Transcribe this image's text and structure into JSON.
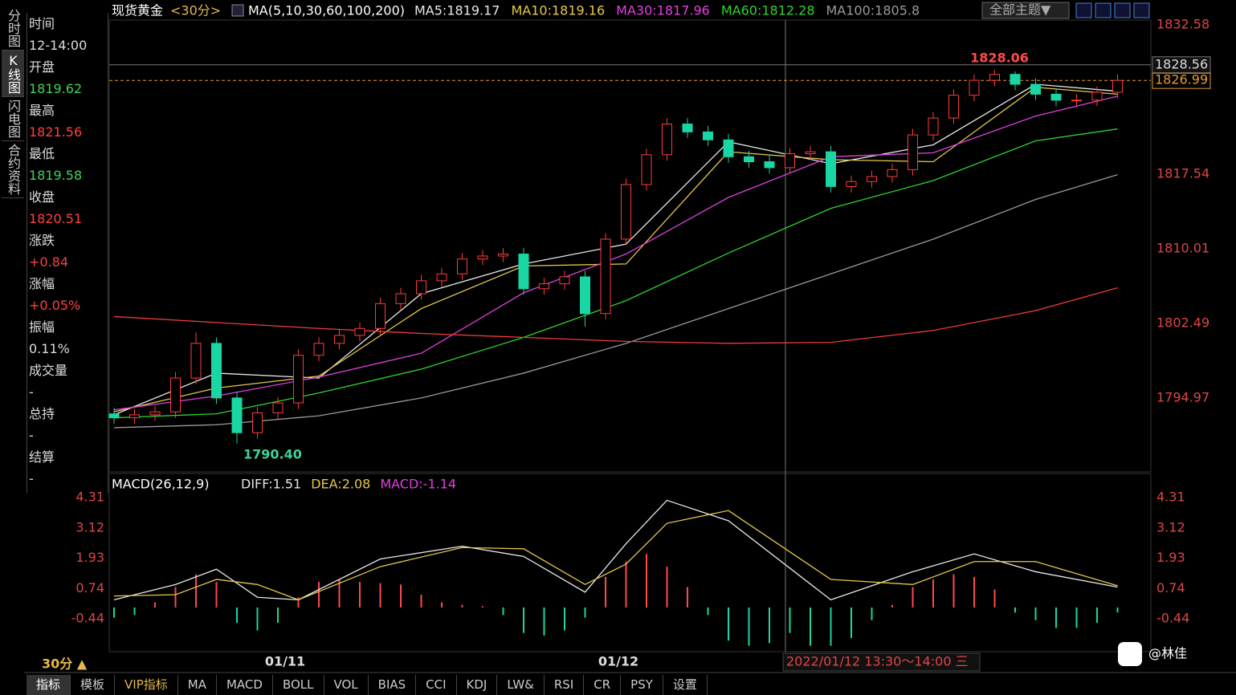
{
  "tabs_left": [
    "分时图",
    "K线图",
    "闪电图",
    "合约资料"
  ],
  "header": {
    "symbol": "现货黄金",
    "period": "<30分>",
    "ma_label": "MA(5,10,30,60,100,200)",
    "theme": "全部主题▼"
  },
  "info": [
    {
      "label": "时间",
      "value": "12-14:00"
    },
    {
      "label": "开盘",
      "value": "1819.62",
      "color": "#3fd35a"
    },
    {
      "label": "最高",
      "value": "1821.56",
      "color": "#ff4040"
    },
    {
      "label": "最低",
      "value": "1819.58",
      "color": "#3fd35a"
    },
    {
      "label": "收盘",
      "value": "1820.51",
      "color": "#ff4040"
    },
    {
      "label": "涨跌",
      "value": "+0.84",
      "color": "#ff4040"
    },
    {
      "label": "涨幅",
      "value": "+0.05%",
      "color": "#ff4040"
    },
    {
      "label": "振幅",
      "value": "0.11%"
    },
    {
      "label": "成交量",
      "value": "-"
    },
    {
      "label": "总持",
      "value": "-"
    },
    {
      "label": "结算",
      "value": "-"
    }
  ],
  "chart_data": {
    "type": "candlestick",
    "open": [
      1793.4,
      1793.0,
      1793.3,
      1793.6,
      1797.0,
      1800.5,
      1795.0,
      1791.5,
      1793.5,
      1794.5,
      1799.3,
      1800.5,
      1801.3,
      1802.0,
      1804.5,
      1805.5,
      1806.8,
      1807.5,
      1809.0,
      1809.3,
      1809.5,
      1806.0,
      1806.5,
      1807.2,
      1803.5,
      1811.0,
      1816.5,
      1819.5,
      1822.6,
      1821.8,
      1821.0,
      1819.3,
      1818.8,
      1818.2,
      1819.6,
      1819.8,
      1816.3,
      1816.8,
      1817.3,
      1818.0,
      1821.5,
      1823.2,
      1825.5,
      1827.0,
      1827.6,
      1826.6,
      1825.6,
      1825.0,
      1825.0,
      1825.8
    ],
    "high": [
      1794.0,
      1793.9,
      1794.2,
      1797.6,
      1801.6,
      1801.1,
      1795.6,
      1794.1,
      1795.1,
      1799.9,
      1801.1,
      1801.9,
      1802.6,
      1805.1,
      1806.1,
      1807.4,
      1808.1,
      1809.6,
      1809.9,
      1810.1,
      1810.1,
      1807.1,
      1807.8,
      1807.8,
      1811.6,
      1817.1,
      1820.1,
      1823.2,
      1823.2,
      1822.4,
      1821.6,
      1819.9,
      1819.4,
      1820.2,
      1820.4,
      1820.4,
      1817.4,
      1817.9,
      1818.6,
      1822.1,
      1823.8,
      1826.1,
      1827.6,
      1828.06,
      1827.9,
      1827.2,
      1826.2,
      1825.6,
      1826.4,
      1827.59
    ],
    "low": [
      1792.4,
      1792.4,
      1792.7,
      1793.0,
      1796.4,
      1794.4,
      1790.4,
      1790.9,
      1792.9,
      1793.9,
      1798.7,
      1799.9,
      1800.7,
      1801.4,
      1803.9,
      1804.9,
      1806.2,
      1806.9,
      1808.4,
      1808.7,
      1805.4,
      1805.4,
      1805.9,
      1802.2,
      1802.9,
      1810.4,
      1815.9,
      1818.9,
      1821.2,
      1820.4,
      1818.7,
      1818.2,
      1817.6,
      1817.6,
      1819.0,
      1815.7,
      1815.7,
      1816.2,
      1816.7,
      1817.4,
      1820.9,
      1822.6,
      1824.9,
      1826.4,
      1826.0,
      1825.0,
      1824.4,
      1824.4,
      1824.4,
      1825.2
    ],
    "close": [
      1793.0,
      1793.3,
      1793.6,
      1797.0,
      1800.5,
      1795.0,
      1791.5,
      1793.5,
      1794.5,
      1799.3,
      1800.5,
      1801.3,
      1802.0,
      1804.5,
      1805.5,
      1806.8,
      1807.5,
      1809.0,
      1809.3,
      1809.5,
      1806.0,
      1806.5,
      1807.2,
      1803.5,
      1811.0,
      1816.5,
      1819.5,
      1822.6,
      1821.8,
      1821.0,
      1819.3,
      1818.8,
      1818.2,
      1819.6,
      1819.8,
      1816.3,
      1816.8,
      1817.3,
      1818.0,
      1821.5,
      1823.2,
      1825.5,
      1827.0,
      1827.6,
      1826.6,
      1825.6,
      1825.0,
      1825.0,
      1825.8,
      1826.99
    ],
    "up_color": "#ff3c3c",
    "down_color": "#19d6a4",
    "ylim": [
      1787.55,
      1833.07
    ],
    "yticks": [
      1832.58,
      1817.54,
      1810.01,
      1802.49,
      1794.97
    ],
    "last_price": 1826.99,
    "cursor_price": 1828.56,
    "annotations": [
      "1828.06",
      "1790.40"
    ],
    "ma_x": [
      0,
      5,
      10,
      15,
      20,
      25,
      30,
      35,
      40,
      45,
      49
    ],
    "series": [
      {
        "name": "MA5:1819.17",
        "color": "#e8e8e8",
        "values": [
          1793.3,
          1797.5,
          1797.0,
          1805.5,
          1808.5,
          1810.5,
          1820.8,
          1818.6,
          1820.5,
          1826.6,
          1825.9
        ]
      },
      {
        "name": "MA10:1819.16",
        "color": "#e6c84a",
        "values": [
          1793.6,
          1796.0,
          1797.2,
          1804.0,
          1808.3,
          1808.5,
          1819.8,
          1819.0,
          1818.8,
          1826.3,
          1825.6
        ]
      },
      {
        "name": "MA30:1817.96",
        "color": "#e040e0",
        "values": [
          1793.8,
          1795.2,
          1797.1,
          1799.5,
          1805.6,
          1809.5,
          1815.2,
          1819.3,
          1819.7,
          1823.4,
          1825.4
        ]
      },
      {
        "name": "MA60:1812.28",
        "color": "#2ed52e",
        "values": [
          1793.0,
          1793.4,
          1795.5,
          1797.9,
          1801.1,
          1804.8,
          1809.6,
          1814.1,
          1816.9,
          1820.9,
          1822.1
        ]
      },
      {
        "name": "MA100:1805.8",
        "color": "#9a9a9a",
        "values": [
          1792.0,
          1792.3,
          1793.2,
          1795.0,
          1797.5,
          1800.5,
          1804.0,
          1807.5,
          1811.0,
          1815.0,
          1817.5
        ]
      },
      {
        "color": "#f03c3c",
        "values": [
          1803.2,
          1802.6,
          1802.0,
          1801.5,
          1801.1,
          1800.7,
          1800.5,
          1800.6,
          1801.8,
          1803.8,
          1806.1
        ]
      }
    ],
    "x_labels": [
      "01/11",
      "01/12"
    ]
  },
  "macd": {
    "type": "bar",
    "title": "MACD(26,12,9)",
    "ylim": [
      -1.67,
      4.56
    ],
    "yticks": [
      4.31,
      3.12,
      1.93,
      0.74,
      -0.44
    ],
    "hist": {
      "name": "MACD:-1.14",
      "up_color": "#ff4a4a",
      "down_color": "#19d6a4",
      "values": [
        -0.4,
        -0.3,
        0.2,
        0.8,
        1.3,
        1.0,
        -0.6,
        -0.9,
        -0.6,
        0.4,
        1.0,
        1.1,
        1.0,
        0.95,
        0.9,
        0.5,
        0.2,
        0.1,
        0.05,
        -0.3,
        -1.0,
        -1.1,
        -0.9,
        -0.4,
        1.2,
        1.8,
        2.1,
        1.6,
        0.8,
        -0.3,
        -1.3,
        -1.5,
        -1.4,
        -1.0,
        -1.5,
        -1.5,
        -1.2,
        -0.5,
        0.1,
        0.8,
        1.1,
        1.3,
        1.2,
        0.7,
        -0.2,
        -0.5,
        -0.8,
        -0.8,
        -0.6,
        -0.2
      ]
    },
    "line_x": [
      0,
      3,
      5,
      7,
      9,
      13,
      17,
      20,
      23,
      25,
      27,
      30,
      35,
      39,
      42,
      45,
      49
    ],
    "series": [
      {
        "name": "DIFF:1.51",
        "color": "#e8e8e8",
        "values": [
          0.3,
          0.9,
          1.5,
          0.4,
          0.3,
          1.9,
          2.4,
          2.0,
          0.6,
          2.5,
          4.2,
          3.4,
          0.3,
          1.4,
          2.1,
          1.4,
          0.8
        ]
      },
      {
        "name": "DEA:2.08",
        "color": "#e6c84a",
        "values": [
          0.45,
          0.5,
          1.1,
          0.9,
          0.3,
          1.6,
          2.35,
          2.3,
          0.9,
          1.7,
          3.3,
          3.8,
          1.1,
          0.9,
          1.8,
          1.8,
          0.85
        ]
      }
    ]
  },
  "footer": {
    "period": "30分 ▲",
    "range": "2022/01/12 13:30～14:00 三",
    "tabs": [
      "指标",
      "模板",
      "VIP指标",
      "MA",
      "MACD",
      "BOLL",
      "VOL",
      "BIAS",
      "CCI",
      "KDJ",
      "LW&",
      "RSI",
      "CR",
      "PSY",
      "设置"
    ],
    "watermark": "@林佳"
  }
}
